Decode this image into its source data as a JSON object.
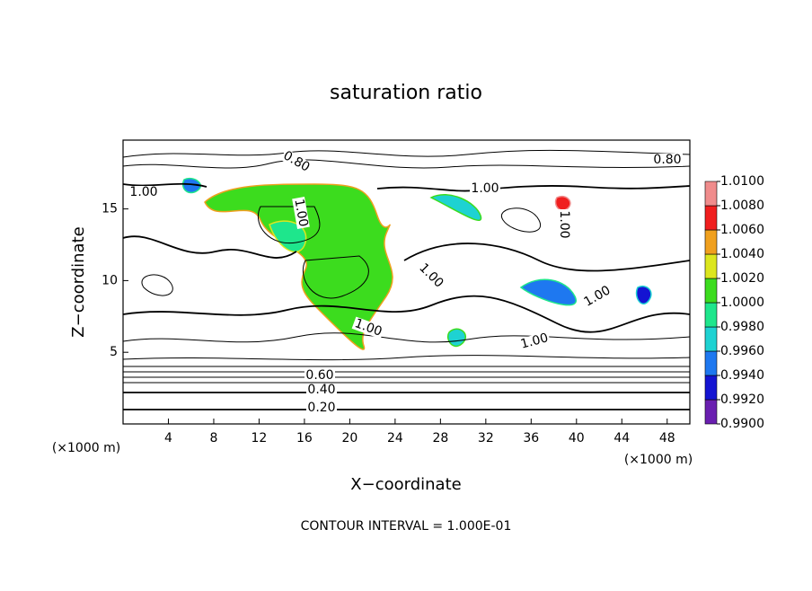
{
  "chart_data": {
    "type": "contour",
    "title": "saturation ratio",
    "x_label": "X−coordinate",
    "y_label": "Z−coordinate",
    "unit_labels": [
      "(×1000 m)",
      "(×1000 m)"
    ],
    "xlim": [
      0,
      50
    ],
    "ylim": [
      0,
      19.8
    ],
    "xticks": [
      4,
      8,
      12,
      16,
      20,
      24,
      28,
      32,
      36,
      40,
      44,
      48
    ],
    "yticks": [
      5,
      10,
      15
    ],
    "contour_labels": [
      "0.80",
      "0.80",
      "1.00",
      "1.00",
      "1.00",
      "1.00",
      "1.00",
      "1.00",
      "1.00",
      "1.00",
      "0.60",
      "0.40",
      "0.20"
    ],
    "footer": "CONTOUR INTERVAL = 1.000E-01",
    "colorbar": {
      "ticks": [
        {
          "value": 0.99,
          "label": "0.9900"
        },
        {
          "value": 0.992,
          "label": "0.9920"
        },
        {
          "value": 0.994,
          "label": "0.9940"
        },
        {
          "value": 0.996,
          "label": "0.9960"
        },
        {
          "value": 0.998,
          "label": "0.9980"
        },
        {
          "value": 1.0,
          "label": "1.0000"
        },
        {
          "value": 1.002,
          "label": "1.0020"
        },
        {
          "value": 1.004,
          "label": "1.0040"
        },
        {
          "value": 1.006,
          "label": "1.0060"
        },
        {
          "value": 1.008,
          "label": "1.0080"
        },
        {
          "value": 1.01,
          "label": "1.0100"
        }
      ],
      "colors": [
        "#6a1fb0",
        "#1414d2",
        "#1e78f0",
        "#1ed2d2",
        "#1ee68c",
        "#3cdc1e",
        "#dce61e",
        "#f0a01e",
        "#f01e1e",
        "#f08c8c"
      ]
    }
  }
}
